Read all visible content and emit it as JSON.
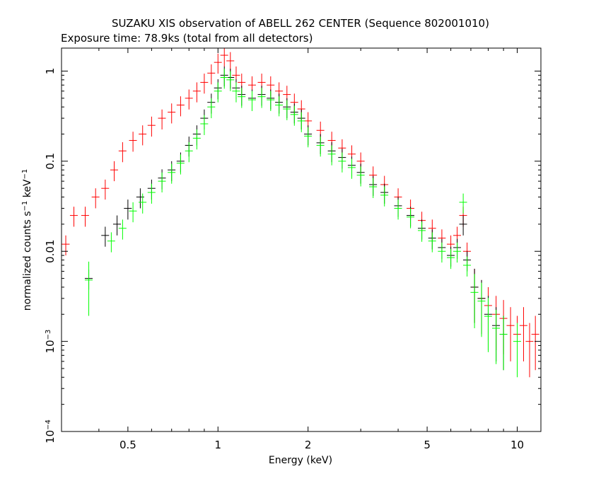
{
  "chart_data": {
    "type": "scatter",
    "title": "SUZAKU XIS observation of ABELL 262 CENTER (Sequence 802001010)",
    "subtitle": "Exposure time: 78.9ks (total from all detectors)",
    "xlabel": "Energy (keV)",
    "ylabel_main": "normalized counts s",
    "ylabel_sup1": "−1",
    "ylabel_mid": " keV",
    "ylabel_sup2": "−1",
    "xscale": "log",
    "yscale": "log",
    "xlim": [
      0.3,
      12
    ],
    "ylim": [
      0.0001,
      1.8
    ],
    "xticks": [
      {
        "v": 0.5,
        "label": "0.5"
      },
      {
        "v": 1,
        "label": "1"
      },
      {
        "v": 2,
        "label": "2"
      },
      {
        "v": 5,
        "label": "5"
      },
      {
        "v": 10,
        "label": "10"
      }
    ],
    "yticks": [
      {
        "v": 1,
        "label": "1"
      },
      {
        "v": 0.1,
        "label": "0.1"
      },
      {
        "v": 0.01,
        "label": "0.01"
      },
      {
        "v": 0.001,
        "label": "10",
        "sup": "−3"
      },
      {
        "v": 0.0001,
        "label": "10",
        "sup": "−4"
      }
    ],
    "series": [
      {
        "color": "#ff0000",
        "points": [
          [
            0.31,
            0.012
          ],
          [
            0.33,
            0.025
          ],
          [
            0.36,
            0.025
          ],
          [
            0.39,
            0.04
          ],
          [
            0.42,
            0.05
          ],
          [
            0.45,
            0.08
          ],
          [
            0.48,
            0.13
          ],
          [
            0.52,
            0.17
          ],
          [
            0.56,
            0.2
          ],
          [
            0.6,
            0.25
          ],
          [
            0.65,
            0.3
          ],
          [
            0.7,
            0.35
          ],
          [
            0.75,
            0.42
          ],
          [
            0.8,
            0.5
          ],
          [
            0.85,
            0.6
          ],
          [
            0.9,
            0.75
          ],
          [
            0.95,
            0.95
          ],
          [
            1.0,
            1.25
          ],
          [
            1.05,
            1.5
          ],
          [
            1.1,
            1.3
          ],
          [
            1.15,
            0.9
          ],
          [
            1.2,
            0.75
          ],
          [
            1.3,
            0.7
          ],
          [
            1.4,
            0.75
          ],
          [
            1.5,
            0.7
          ],
          [
            1.6,
            0.6
          ],
          [
            1.7,
            0.55
          ],
          [
            1.8,
            0.45
          ],
          [
            1.9,
            0.38
          ],
          [
            2.0,
            0.28
          ],
          [
            2.2,
            0.22
          ],
          [
            2.4,
            0.17
          ],
          [
            2.6,
            0.14
          ],
          [
            2.8,
            0.12
          ],
          [
            3.0,
            0.1
          ],
          [
            3.3,
            0.07
          ],
          [
            3.6,
            0.055
          ],
          [
            4.0,
            0.04
          ],
          [
            4.4,
            0.03
          ],
          [
            4.8,
            0.022
          ],
          [
            5.2,
            0.018
          ],
          [
            5.6,
            0.014
          ],
          [
            6.0,
            0.012
          ],
          [
            6.3,
            0.015
          ],
          [
            6.6,
            0.025
          ],
          [
            6.8,
            0.01
          ],
          [
            7.2,
            0.004
          ],
          [
            7.6,
            0.003
          ],
          [
            8.0,
            0.0025
          ],
          [
            8.5,
            0.002
          ],
          [
            9.0,
            0.0018
          ],
          [
            9.5,
            0.0015
          ],
          [
            10.0,
            0.0012
          ],
          [
            10.5,
            0.0015
          ],
          [
            11.0,
            0.001
          ],
          [
            11.5,
            0.0012
          ]
        ]
      },
      {
        "color": "#000000",
        "points": [
          [
            0.37,
            0.005
          ],
          [
            0.42,
            0.015
          ],
          [
            0.46,
            0.02
          ],
          [
            0.5,
            0.03
          ],
          [
            0.55,
            0.04
          ],
          [
            0.6,
            0.05
          ],
          [
            0.65,
            0.065
          ],
          [
            0.7,
            0.08
          ],
          [
            0.75,
            0.1
          ],
          [
            0.8,
            0.15
          ],
          [
            0.85,
            0.2
          ],
          [
            0.9,
            0.3
          ],
          [
            0.95,
            0.45
          ],
          [
            1.0,
            0.65
          ],
          [
            1.05,
            0.9
          ],
          [
            1.1,
            0.85
          ],
          [
            1.15,
            0.65
          ],
          [
            1.2,
            0.55
          ],
          [
            1.3,
            0.5
          ],
          [
            1.4,
            0.55
          ],
          [
            1.5,
            0.5
          ],
          [
            1.6,
            0.45
          ],
          [
            1.7,
            0.4
          ],
          [
            1.8,
            0.35
          ],
          [
            1.9,
            0.3
          ],
          [
            2.0,
            0.2
          ],
          [
            2.2,
            0.16
          ],
          [
            2.4,
            0.13
          ],
          [
            2.6,
            0.11
          ],
          [
            2.8,
            0.09
          ],
          [
            3.0,
            0.075
          ],
          [
            3.3,
            0.055
          ],
          [
            3.6,
            0.045
          ],
          [
            4.0,
            0.032
          ],
          [
            4.4,
            0.025
          ],
          [
            4.8,
            0.018
          ],
          [
            5.2,
            0.014
          ],
          [
            5.6,
            0.011
          ],
          [
            6.0,
            0.009
          ],
          [
            6.3,
            0.011
          ],
          [
            6.6,
            0.02
          ],
          [
            6.8,
            0.008
          ],
          [
            7.2,
            0.004
          ],
          [
            7.6,
            0.003
          ],
          [
            8.0,
            0.002
          ],
          [
            8.5,
            0.0015
          ],
          [
            9.0,
            0.0012
          ]
        ]
      },
      {
        "color": "#00ff00",
        "points": [
          [
            0.37,
            0.0048
          ],
          [
            0.44,
            0.013
          ],
          [
            0.48,
            0.018
          ],
          [
            0.52,
            0.028
          ],
          [
            0.56,
            0.035
          ],
          [
            0.6,
            0.045
          ],
          [
            0.65,
            0.06
          ],
          [
            0.7,
            0.075
          ],
          [
            0.75,
            0.095
          ],
          [
            0.8,
            0.13
          ],
          [
            0.85,
            0.18
          ],
          [
            0.9,
            0.26
          ],
          [
            0.95,
            0.4
          ],
          [
            1.0,
            0.6
          ],
          [
            1.05,
            0.85
          ],
          [
            1.1,
            0.8
          ],
          [
            1.15,
            0.6
          ],
          [
            1.2,
            0.52
          ],
          [
            1.3,
            0.48
          ],
          [
            1.4,
            0.52
          ],
          [
            1.5,
            0.48
          ],
          [
            1.6,
            0.42
          ],
          [
            1.7,
            0.38
          ],
          [
            1.8,
            0.33
          ],
          [
            1.9,
            0.28
          ],
          [
            2.0,
            0.19
          ],
          [
            2.2,
            0.15
          ],
          [
            2.4,
            0.12
          ],
          [
            2.6,
            0.1
          ],
          [
            2.8,
            0.085
          ],
          [
            3.0,
            0.07
          ],
          [
            3.3,
            0.052
          ],
          [
            3.6,
            0.042
          ],
          [
            4.0,
            0.03
          ],
          [
            4.4,
            0.024
          ],
          [
            4.8,
            0.017
          ],
          [
            5.2,
            0.013
          ],
          [
            5.6,
            0.01
          ],
          [
            6.0,
            0.0085
          ],
          [
            6.3,
            0.01
          ],
          [
            6.6,
            0.035
          ],
          [
            6.8,
            0.007
          ],
          [
            7.2,
            0.0035
          ],
          [
            7.6,
            0.0028
          ],
          [
            8.0,
            0.0019
          ],
          [
            8.5,
            0.0014
          ],
          [
            9.0,
            0.0012
          ],
          [
            10.0,
            0.001
          ]
        ]
      }
    ]
  }
}
